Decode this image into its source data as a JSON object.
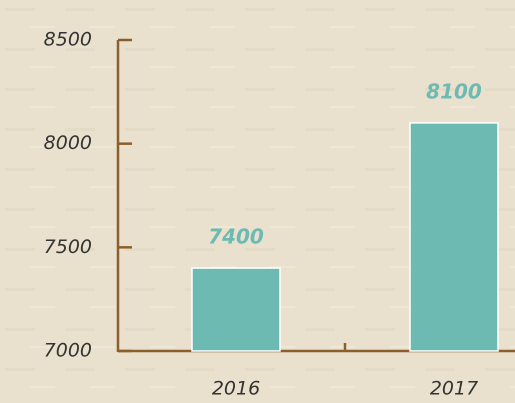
{
  "chart_data": {
    "type": "bar",
    "categories": [
      "2016",
      "2017"
    ],
    "values": [
      7400,
      8100
    ],
    "color": "#6dbab3",
    "ylim": [
      7000,
      8500
    ],
    "yticks": [
      7000,
      7500,
      8000,
      8500
    ],
    "grid": false
  }
}
